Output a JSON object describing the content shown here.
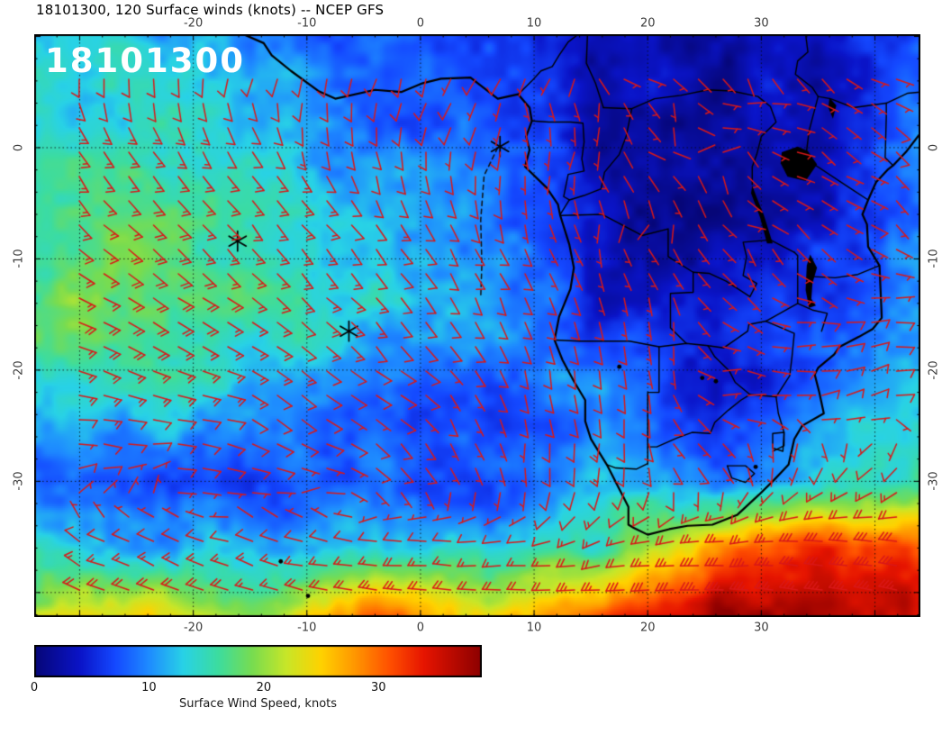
{
  "title": "18101300, 120 Surface winds (knots) -- NCEP GFS",
  "overlay_label": "18101300",
  "colors": {
    "barb": "#d91818",
    "coast": "#000000",
    "grid": "#101010",
    "tick_label": "#3c3c3c",
    "overlay_text": "#ffffff",
    "background": "#ffffff"
  },
  "axes": {
    "lon_min": -34,
    "lon_max": 44,
    "lat_min": -42.2,
    "lat_max": 10.2,
    "lon_ticks": [
      {
        "label": "-20",
        "value": -20
      },
      {
        "label": "-10",
        "value": -10
      },
      {
        "label": "0",
        "value": 0
      },
      {
        "label": "10",
        "value": 10
      },
      {
        "label": "20",
        "value": 20
      },
      {
        "label": "30",
        "value": 30
      }
    ],
    "lat_ticks": [
      {
        "label": "0",
        "value": 0
      },
      {
        "label": "-10",
        "value": -10
      },
      {
        "label": "-20",
        "value": -20
      },
      {
        "label": "-30",
        "value": -30
      }
    ]
  },
  "colorbar": {
    "min": 0,
    "max": 39,
    "ticks": [
      {
        "label": "0",
        "value": 0
      },
      {
        "label": "10",
        "value": 10
      },
      {
        "label": "20",
        "value": 20
      },
      {
        "label": "30",
        "value": 30
      }
    ],
    "caption": "Surface Wind Speed, knots"
  },
  "chart_data": {
    "type": "heatmap",
    "title": "Surface winds (knots), 120 h forecast, NCEP GFS, init 18101300",
    "units": "knots",
    "grid_lons": [
      -34,
      -24,
      -14,
      -4,
      6,
      16,
      26,
      36,
      44
    ],
    "grid_lats": [
      10,
      2,
      -6,
      -14,
      -22,
      -30,
      -36,
      -42
    ],
    "speed_knots": [
      [
        13,
        12,
        10,
        8,
        7,
        3,
        2,
        3,
        8
      ],
      [
        14,
        14,
        12,
        9,
        7,
        3,
        2,
        4,
        9
      ],
      [
        16,
        18,
        15,
        12,
        9,
        3,
        2,
        4,
        9
      ],
      [
        18,
        19,
        16,
        13,
        11,
        5,
        3,
        7,
        10
      ],
      [
        14,
        15,
        12,
        9,
        7,
        11,
        4,
        9,
        12
      ],
      [
        8,
        6,
        7,
        9,
        6,
        12,
        9,
        12,
        16
      ],
      [
        14,
        12,
        11,
        14,
        13,
        16,
        28,
        33,
        32
      ],
      [
        22,
        26,
        20,
        30,
        24,
        32,
        38,
        37,
        35
      ]
    ],
    "wind_from_deg": [
      [
        225,
        222,
        218,
        212,
        205,
        120,
        100,
        80,
        70
      ],
      [
        160,
        155,
        165,
        185,
        200,
        150,
        130,
        120,
        130
      ],
      [
        130,
        135,
        140,
        150,
        165,
        160,
        140,
        140,
        130
      ],
      [
        115,
        120,
        130,
        140,
        155,
        170,
        120,
        100,
        95
      ],
      [
        100,
        108,
        118,
        132,
        152,
        175,
        90,
        70,
        85
      ],
      [
        60,
        75,
        95,
        130,
        160,
        185,
        140,
        215,
        235
      ],
      [
        300,
        295,
        288,
        280,
        270,
        258,
        265,
        275,
        280
      ],
      [
        295,
        290,
        285,
        278,
        273,
        268,
        274,
        280,
        285
      ]
    ],
    "colormap_stops": [
      [
        0,
        "#060678"
      ],
      [
        4,
        "#0a14c8"
      ],
      [
        7,
        "#1448ff"
      ],
      [
        10,
        "#1e8cff"
      ],
      [
        13,
        "#28d2e6"
      ],
      [
        16,
        "#3cdca0"
      ],
      [
        19,
        "#78dc50"
      ],
      [
        22,
        "#c8e628"
      ],
      [
        25,
        "#ffd200"
      ],
      [
        28,
        "#ff9600"
      ],
      [
        31,
        "#ff5000"
      ],
      [
        34,
        "#e61400"
      ],
      [
        39,
        "#8c0000"
      ]
    ]
  },
  "geo": {
    "coastline": [
      [
        -15.6,
        10.2
      ],
      [
        -13.8,
        9.4
      ],
      [
        -13.1,
        8.3
      ],
      [
        -11.4,
        6.9
      ],
      [
        -9.0,
        5.1
      ],
      [
        -7.5,
        4.4
      ],
      [
        -4.0,
        5.2
      ],
      [
        -1.7,
        5.0
      ],
      [
        0.2,
        5.8
      ],
      [
        1.8,
        6.2
      ],
      [
        4.4,
        6.3
      ],
      [
        6.8,
        4.4
      ],
      [
        8.6,
        4.8
      ],
      [
        9.6,
        3.6
      ],
      [
        9.8,
        2.4
      ],
      [
        9.3,
        1.0
      ],
      [
        9.6,
        -0.2
      ],
      [
        9.2,
        -1.7
      ],
      [
        11.1,
        -3.6
      ],
      [
        12.1,
        -5.1
      ],
      [
        12.3,
        -6.1
      ],
      [
        13.1,
        -8.7
      ],
      [
        13.5,
        -10.8
      ],
      [
        13.2,
        -12.7
      ],
      [
        12.2,
        -15.2
      ],
      [
        11.8,
        -17.3
      ],
      [
        12.5,
        -19.1
      ],
      [
        13.5,
        -21.0
      ],
      [
        14.5,
        -22.7
      ],
      [
        14.5,
        -24.6
      ],
      [
        15.0,
        -26.2
      ],
      [
        16.4,
        -28.5
      ],
      [
        17.4,
        -30.5
      ],
      [
        18.3,
        -32.3
      ],
      [
        18.3,
        -33.9
      ],
      [
        18.8,
        -34.2
      ],
      [
        20.0,
        -34.8
      ],
      [
        21.9,
        -34.3
      ],
      [
        23.5,
        -34.0
      ],
      [
        25.7,
        -33.9
      ],
      [
        27.9,
        -33.0
      ],
      [
        29.8,
        -31.2
      ],
      [
        31.1,
        -29.9
      ],
      [
        32.4,
        -28.5
      ],
      [
        32.9,
        -26.2
      ],
      [
        33.6,
        -25.0
      ],
      [
        35.5,
        -23.9
      ],
      [
        35.1,
        -22.0
      ],
      [
        34.7,
        -20.4
      ],
      [
        35.0,
        -19.8
      ],
      [
        36.4,
        -18.6
      ],
      [
        36.9,
        -17.9
      ],
      [
        38.6,
        -17.0
      ],
      [
        39.8,
        -16.3
      ],
      [
        40.6,
        -15.3
      ],
      [
        40.5,
        -12.9
      ],
      [
        40.4,
        -10.6
      ],
      [
        39.4,
        -8.9
      ],
      [
        39.3,
        -6.9
      ],
      [
        38.9,
        -6.0
      ],
      [
        39.4,
        -4.7
      ],
      [
        40.1,
        -3.1
      ],
      [
        41.1,
        -2.0
      ],
      [
        41.6,
        -1.6
      ],
      [
        42.8,
        -0.3
      ],
      [
        44.0,
        1.3
      ]
    ],
    "borders": [
      [
        [
          12.3,
          -6.1
        ],
        [
          16.0,
          -6.0
        ],
        [
          19.5,
          -7.9
        ],
        [
          21.8,
          -7.3
        ],
        [
          21.8,
          -9.8
        ],
        [
          24.0,
          -11.2
        ]
      ],
      [
        [
          24.0,
          -11.2
        ],
        [
          25.4,
          -11.3
        ],
        [
          26.9,
          -12.0
        ],
        [
          29.0,
          -13.4
        ],
        [
          29.6,
          -12.2
        ],
        [
          28.4,
          -11.5
        ],
        [
          28.7,
          -9.8
        ],
        [
          28.4,
          -8.5
        ],
        [
          30.8,
          -8.3
        ]
      ],
      [
        [
          24.0,
          -11.2
        ],
        [
          24.0,
          -13.0
        ],
        [
          22.0,
          -13.1
        ],
        [
          22.0,
          -16.2
        ],
        [
          23.4,
          -17.6
        ]
      ],
      [
        [
          11.8,
          -17.3
        ],
        [
          14.0,
          -17.4
        ],
        [
          18.4,
          -17.4
        ],
        [
          21.0,
          -17.9
        ],
        [
          23.4,
          -17.6
        ],
        [
          25.3,
          -17.8
        ]
      ],
      [
        [
          21.0,
          -17.9
        ],
        [
          21.0,
          -22.0
        ],
        [
          20.0,
          -22.0
        ],
        [
          20.0,
          -28.4
        ]
      ],
      [
        [
          20.0,
          -28.4
        ],
        [
          19.0,
          -28.9
        ],
        [
          17.2,
          -28.8
        ],
        [
          16.4,
          -28.5
        ]
      ],
      [
        [
          20.0,
          -26.9
        ],
        [
          20.8,
          -26.9
        ],
        [
          22.6,
          -26.1
        ],
        [
          23.9,
          -25.6
        ],
        [
          25.5,
          -25.7
        ],
        [
          25.9,
          -24.7
        ],
        [
          27.1,
          -23.6
        ],
        [
          28.2,
          -22.7
        ],
        [
          29.0,
          -22.2
        ]
      ],
      [
        [
          25.3,
          -17.8
        ],
        [
          25.9,
          -18.8
        ],
        [
          27.2,
          -20.1
        ],
        [
          27.7,
          -21.1
        ],
        [
          29.0,
          -22.2
        ]
      ],
      [
        [
          25.3,
          -17.8
        ],
        [
          26.7,
          -18.0
        ],
        [
          28.8,
          -16.5
        ],
        [
          28.9,
          -15.9
        ],
        [
          30.4,
          -15.6
        ]
      ],
      [
        [
          29.0,
          -22.2
        ],
        [
          31.3,
          -22.4
        ]
      ],
      [
        [
          30.4,
          -15.6
        ],
        [
          32.9,
          -16.7
        ],
        [
          32.7,
          -18.8
        ],
        [
          32.5,
          -20.5
        ],
        [
          31.3,
          -22.4
        ],
        [
          31.5,
          -23.9
        ],
        [
          32.0,
          -25.6
        ],
        [
          32.0,
          -26.8
        ],
        [
          31.0,
          -27.3
        ]
      ],
      [
        [
          30.4,
          -15.6
        ],
        [
          33.2,
          -14.0
        ],
        [
          33.2,
          -9.7
        ],
        [
          32.9,
          -9.4
        ]
      ],
      [
        [
          33.2,
          -14.0
        ],
        [
          34.5,
          -14.6
        ],
        [
          35.8,
          -14.9
        ],
        [
          35.3,
          -16.5
        ]
      ],
      [
        [
          40.4,
          -10.6
        ],
        [
          38.5,
          -11.4
        ],
        [
          36.5,
          -11.7
        ],
        [
          34.6,
          -11.6
        ]
      ],
      [
        [
          30.8,
          -8.3
        ],
        [
          32.9,
          -9.4
        ]
      ],
      [
        [
          39.4,
          -4.7
        ],
        [
          37.6,
          -3.5
        ],
        [
          33.9,
          -1.0
        ]
      ],
      [
        [
          33.9,
          -1.0
        ],
        [
          34.2,
          1.5
        ],
        [
          35.0,
          4.6
        ]
      ],
      [
        [
          35.0,
          4.6
        ],
        [
          36.1,
          4.4
        ],
        [
          38.1,
          3.6
        ],
        [
          41.0,
          4.0
        ]
      ],
      [
        [
          41.0,
          4.0
        ],
        [
          41.0,
          2.8
        ],
        [
          40.9,
          -0.9
        ],
        [
          41.6,
          -1.6
        ]
      ],
      [
        [
          41.0,
          4.0
        ],
        [
          42.9,
          4.9
        ],
        [
          44.0,
          5.0
        ]
      ],
      [
        [
          8.6,
          4.8
        ],
        [
          9.8,
          6.0
        ],
        [
          10.6,
          6.9
        ],
        [
          11.6,
          7.3
        ],
        [
          12.2,
          8.3
        ],
        [
          13.0,
          9.5
        ],
        [
          13.9,
          10.2
        ]
      ],
      [
        [
          16.1,
          3.6
        ],
        [
          18.6,
          3.5
        ],
        [
          20.6,
          4.4
        ],
        [
          22.9,
          4.7
        ],
        [
          25.3,
          5.2
        ],
        [
          27.4,
          5.1
        ]
      ],
      [
        [
          14.7,
          10.2
        ],
        [
          14.6,
          7.6
        ],
        [
          15.4,
          5.8
        ],
        [
          16.1,
          3.6
        ]
      ],
      [
        [
          9.8,
          2.4
        ],
        [
          11.3,
          2.3
        ],
        [
          13.2,
          2.3
        ],
        [
          14.3,
          2.2
        ],
        [
          14.4,
          0.5
        ],
        [
          14.2,
          -1.0
        ],
        [
          14.4,
          -2.1
        ],
        [
          13.0,
          -2.4
        ],
        [
          12.6,
          -4.4
        ],
        [
          13.1,
          -4.7
        ]
      ],
      [
        [
          12.3,
          -6.0
        ],
        [
          13.1,
          -4.7
        ],
        [
          14.4,
          -4.3
        ],
        [
          15.9,
          -3.7
        ],
        [
          16.2,
          -2.2
        ],
        [
          17.5,
          -0.6
        ],
        [
          18.1,
          1.0
        ],
        [
          18.6,
          3.5
        ]
      ],
      [
        [
          33.9,
          10.2
        ],
        [
          34.1,
          8.6
        ],
        [
          33.2,
          7.8
        ],
        [
          33.0,
          6.6
        ],
        [
          34.5,
          5.4
        ],
        [
          35.0,
          4.6
        ]
      ],
      [
        [
          27.4,
          5.1
        ],
        [
          29.7,
          4.6
        ],
        [
          30.8,
          3.7
        ],
        [
          31.3,
          2.3
        ],
        [
          30.0,
          1.0
        ],
        [
          29.6,
          -0.6
        ],
        [
          29.2,
          -1.7
        ],
        [
          29.2,
          -3.3
        ]
      ],
      [
        [
          31.0,
          -25.7
        ],
        [
          32.0,
          -25.6
        ],
        [
          31.9,
          -27.3
        ],
        [
          31.0,
          -27.0
        ],
        [
          31.0,
          -25.7
        ]
      ],
      [
        [
          27.0,
          -28.6
        ],
        [
          28.6,
          -28.6
        ],
        [
          29.4,
          -29.3
        ],
        [
          28.6,
          -30.1
        ],
        [
          27.4,
          -29.7
        ],
        [
          27.0,
          -28.6
        ]
      ]
    ],
    "lakes": [
      [
        [
          31.8,
          -0.4
        ],
        [
          33.2,
          0.1
        ],
        [
          34.1,
          -0.3
        ],
        [
          34.9,
          -1.5
        ],
        [
          33.9,
          -3.0
        ],
        [
          32.3,
          -2.6
        ],
        [
          31.7,
          -1.4
        ]
      ],
      [
        [
          29.2,
          -3.4
        ],
        [
          29.6,
          -4.5
        ],
        [
          30.2,
          -6.0
        ],
        [
          31.0,
          -8.6
        ],
        [
          30.5,
          -8.6
        ],
        [
          29.9,
          -6.3
        ],
        [
          29.1,
          -4.1
        ]
      ],
      [
        [
          34.3,
          -9.6
        ],
        [
          34.9,
          -10.8
        ],
        [
          34.5,
          -12.2
        ],
        [
          34.4,
          -13.6
        ],
        [
          34.8,
          -14.2
        ],
        [
          34.2,
          -14.4
        ],
        [
          33.9,
          -12.8
        ],
        [
          34.0,
          -10.6
        ]
      ],
      [
        [
          36.0,
          4.5
        ],
        [
          36.6,
          3.8
        ],
        [
          36.3,
          2.6
        ],
        [
          35.9,
          3.6
        ]
      ]
    ],
    "spots": [
      {
        "lon": 17.5,
        "lat": -19.7
      },
      {
        "lon": 24.8,
        "lat": -20.7
      },
      {
        "lon": 26.0,
        "lat": -21.0
      },
      {
        "lon": 29.5,
        "lat": -28.7
      },
      {
        "lon": -12.3,
        "lat": -37.2
      },
      {
        "lon": -9.9,
        "lat": -40.3
      }
    ],
    "markers": [
      {
        "lon": 7.0,
        "lat": 0.1
      },
      {
        "lon": -16.1,
        "lat": -8.4
      },
      {
        "lon": -6.3,
        "lat": -16.5
      }
    ],
    "track": [
      [
        6.8,
        0.0
      ],
      [
        5.6,
        -2.5
      ],
      [
        5.3,
        -6.5
      ],
      [
        5.4,
        -10.5
      ],
      [
        5.3,
        -13.5
      ]
    ]
  }
}
